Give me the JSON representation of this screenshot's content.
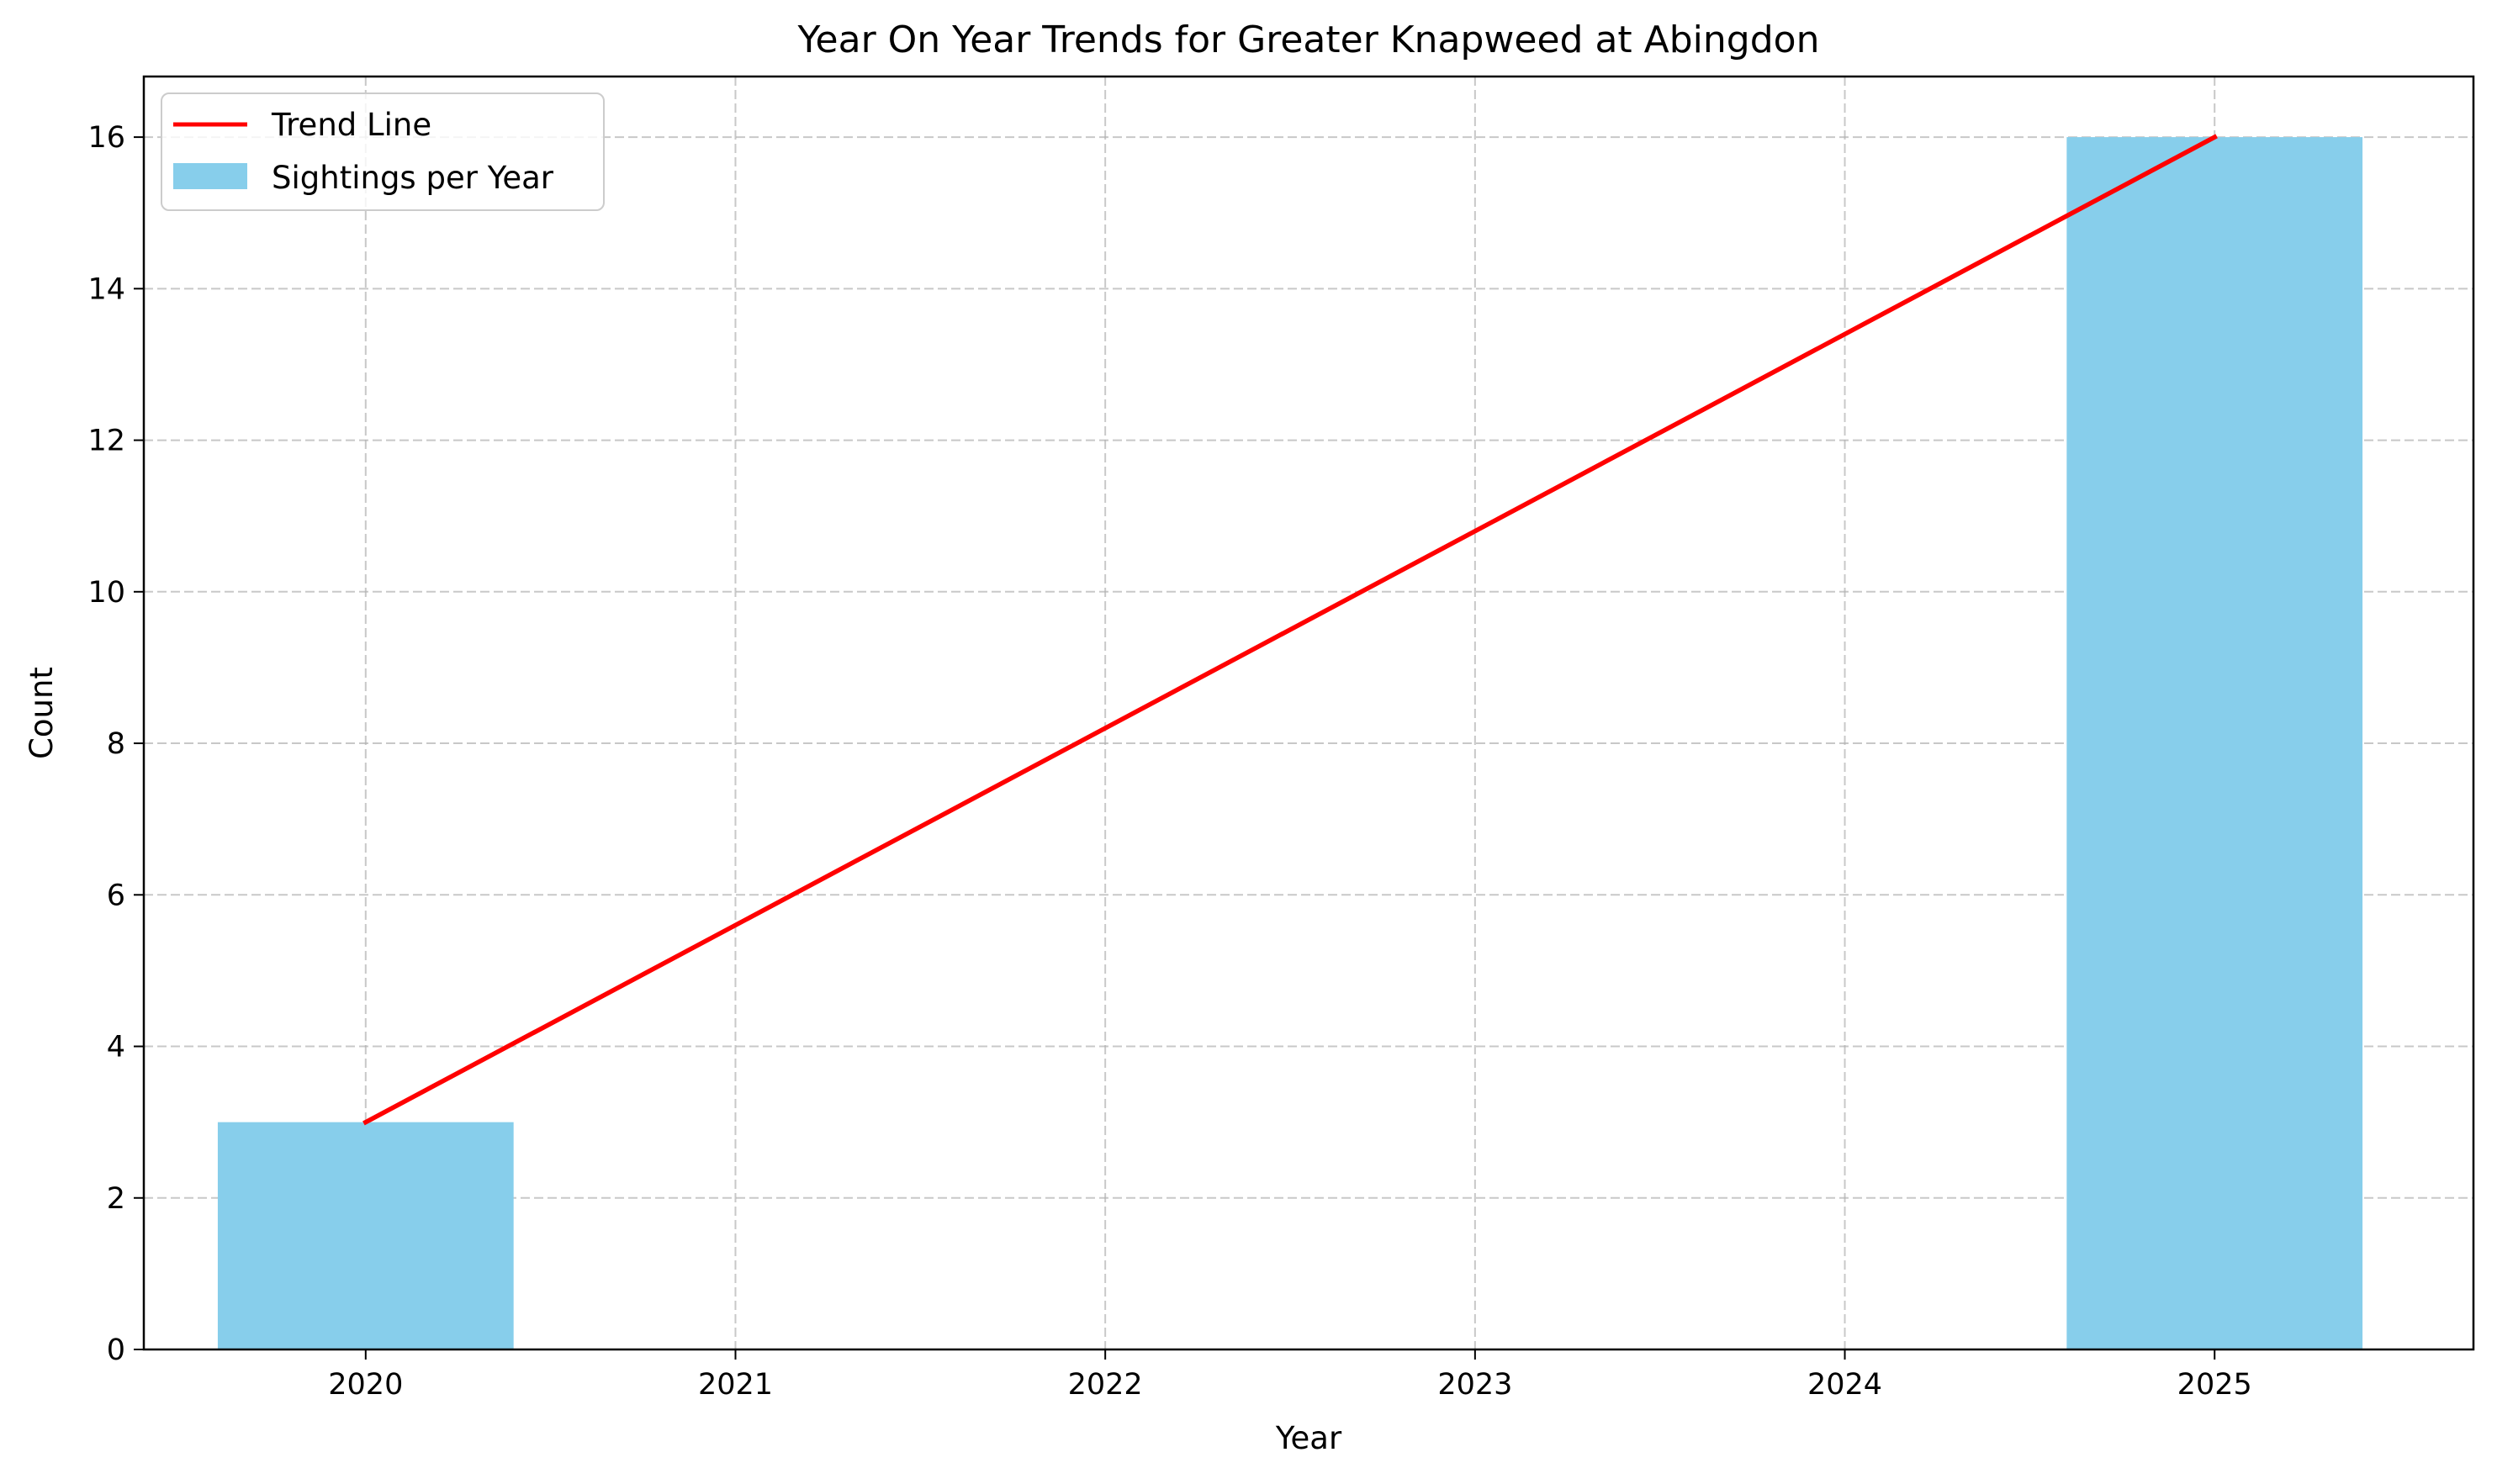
{
  "chart_data": {
    "type": "bar",
    "title": "Year On Year Trends for Greater Knapweed at Abingdon",
    "xlabel": "Year",
    "ylabel": "Count",
    "categories": [
      "2020",
      "2021",
      "2022",
      "2023",
      "2024",
      "2025"
    ],
    "x": [
      2020,
      2021,
      2022,
      2023,
      2024,
      2025
    ],
    "xlim": [
      2019.4,
      2025.7
    ],
    "ylim": [
      0,
      16.8
    ],
    "yticks": [
      0,
      2,
      4,
      6,
      8,
      10,
      12,
      14,
      16
    ],
    "series": [
      {
        "name": "Sightings per Year",
        "type": "bar",
        "color": "#87ceeb",
        "x": [
          2020,
          2025
        ],
        "values": [
          3,
          16
        ]
      },
      {
        "name": "Trend Line",
        "type": "line",
        "color": "#ff0000",
        "x": [
          2020,
          2025
        ],
        "values": [
          3,
          16
        ]
      }
    ],
    "grid": true,
    "legend": {
      "position": "top-left",
      "entries": [
        "Trend Line",
        "Sightings per Year"
      ]
    }
  }
}
